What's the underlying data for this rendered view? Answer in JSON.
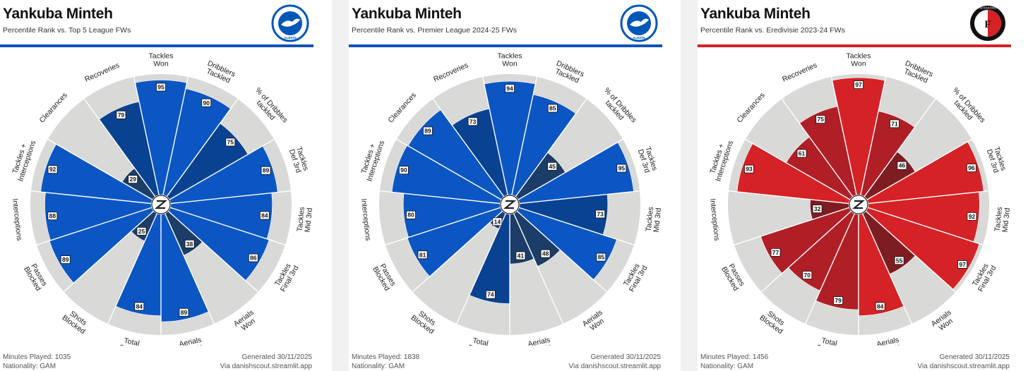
{
  "panels": [
    {
      "player": "Yankuba Minteh",
      "subtitle": "Percentile Rank vs. Top 5 League FWs",
      "minutes": "Minutes Played: 1035",
      "nationality": "Nationality: GAM",
      "generated": "Generated 30/11/2025",
      "via": "Via danishscout.streamlit.app",
      "accent": "#1152b8",
      "logo": "brighton-crest",
      "logo_text": "ALBION"
    },
    {
      "player": "Yankuba Minteh",
      "subtitle": "Percentile Rank vs. Premier League 2024-25 FWs",
      "minutes": "Minutes Played: 1838",
      "nationality": "Nationality: GAM",
      "generated": "Generated 30/11/2025",
      "via": "Via danishscout.streamlit.app",
      "accent": "#1152b8",
      "logo": "brighton-crest",
      "logo_text": "ALBION"
    },
    {
      "player": "Yankuba Minteh",
      "subtitle": "Percentile Rank vs. Eredivisie 2023-24 FWs",
      "minutes": "Minutes Played: 1456",
      "nationality": "Nationality: GAM",
      "generated": "Generated 30/11/2025",
      "via": "Via danishscout.streamlit.app",
      "accent": "#d42226",
      "logo": "feyenoord-crest",
      "logo_text": "FEYENOORD"
    }
  ],
  "chart_data": [
    {
      "type": "polar-bar",
      "rlim": [
        0,
        100
      ],
      "categories": [
        "Tackles\nWon",
        "Dribblers\nTackled",
        "% of Dribbles\ntackled",
        "Tackles\nDef 3rd",
        "Tackles\nMid 3rd",
        "Tackles\nFinal 3rd",
        "Aerials\nWon",
        "Aerials\nWon %",
        "Total\nBlocks",
        "Shots\nBlocked",
        "Passes\nBlocked",
        "Interceptions",
        "Tackles +\nInterceptions",
        "Clearances",
        "Recoveries"
      ],
      "values": [
        95,
        90,
        75,
        89,
        84,
        86,
        38,
        89,
        84,
        25,
        89,
        88,
        92,
        29,
        79
      ],
      "colors": {
        "high": "#0b56c2",
        "mid": "#0a4292",
        "low": "#1b3d68"
      }
    },
    {
      "type": "polar-bar",
      "rlim": [
        0,
        100
      ],
      "categories": [
        "Tackles\nWon",
        "Dribblers\nTackled",
        "% of Dribbles\ntackled",
        "Tackles\nDef 3rd",
        "Tackles\nMid 3rd",
        "Tackles\nFinal 3rd",
        "Aerials\nWon",
        "Aerials\nWon %",
        "Total\nBlocks",
        "Shots\nBlocked",
        "Passes\nBlocked",
        "Interceptions",
        "Tackles +\nInterceptions",
        "Clearances",
        "Recoveries"
      ],
      "values": [
        94,
        85,
        45,
        95,
        73,
        85,
        48,
        41,
        74,
        14,
        81,
        80,
        90,
        89,
        73
      ],
      "colors": {
        "high": "#0b56c2",
        "mid": "#0a4292",
        "low": "#1b3d68"
      }
    },
    {
      "type": "polar-bar",
      "rlim": [
        0,
        100
      ],
      "categories": [
        "Tackles\nWon",
        "Dribblers\nTackled",
        "% of Dribbles\ntackled",
        "Tackles\nDef 3rd",
        "Tackles\nMid 3rd",
        "Tackles\nFinal 3rd",
        "Aerials\nWon",
        "Aerials\nWon %",
        "Total\nBlocks",
        "Shots\nBlocked",
        "Passes\nBlocked",
        "Interceptions",
        "Tackles +\nInterceptions",
        "Clearances",
        "Recoveries"
      ],
      "values": [
        97,
        71,
        46,
        96,
        92,
        97,
        55,
        84,
        79,
        70,
        77,
        32,
        93,
        61,
        75
      ],
      "colors": {
        "high": "#d42226",
        "mid": "#b01e26",
        "low": "#7d1d22"
      }
    }
  ]
}
